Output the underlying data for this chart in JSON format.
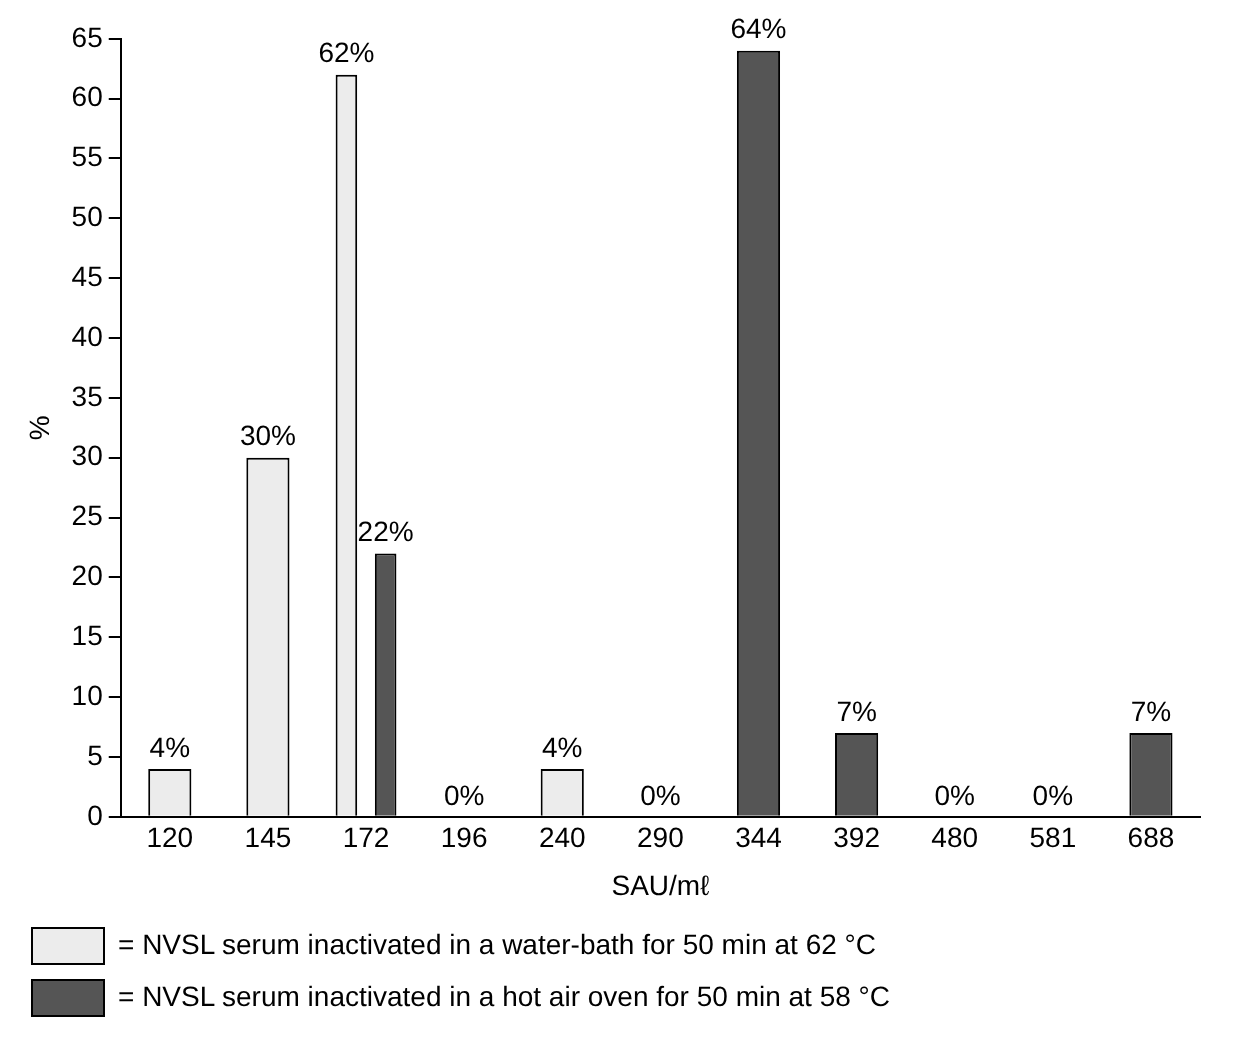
{
  "chart_data": {
    "type": "bar",
    "xlabel": "SAU/mℓ",
    "ylabel": "%",
    "categories": [
      "120",
      "145",
      "172",
      "196",
      "240",
      "290",
      "344",
      "392",
      "480",
      "581",
      "688"
    ],
    "series": [
      {
        "name": "= NVSL serum inactivated in a water-bath for 50 min at 62 °C",
        "color": "#ececec",
        "values": [
          4,
          30,
          62,
          null,
          4,
          null,
          null,
          null,
          0,
          0,
          null
        ],
        "value_labels": [
          "4%",
          "30%",
          "62%",
          null,
          "4%",
          null,
          null,
          null,
          "0%",
          "0%",
          null
        ]
      },
      {
        "name": "= NVSL serum inactivated in a hot air oven for 50 min at 58 °C",
        "color": "#555555",
        "values": [
          null,
          null,
          22,
          0,
          null,
          0,
          64,
          7,
          null,
          null,
          7
        ],
        "value_labels": [
          null,
          null,
          "22%",
          "0%",
          null,
          "0%",
          "64%",
          "7%",
          null,
          null,
          "7%"
        ]
      }
    ],
    "ylim": [
      0,
      65
    ],
    "yticks": [
      0,
      5,
      10,
      15,
      20,
      25,
      30,
      35,
      40,
      45,
      50,
      55,
      60,
      65
    ],
    "grid": false,
    "legend": "bottom"
  }
}
